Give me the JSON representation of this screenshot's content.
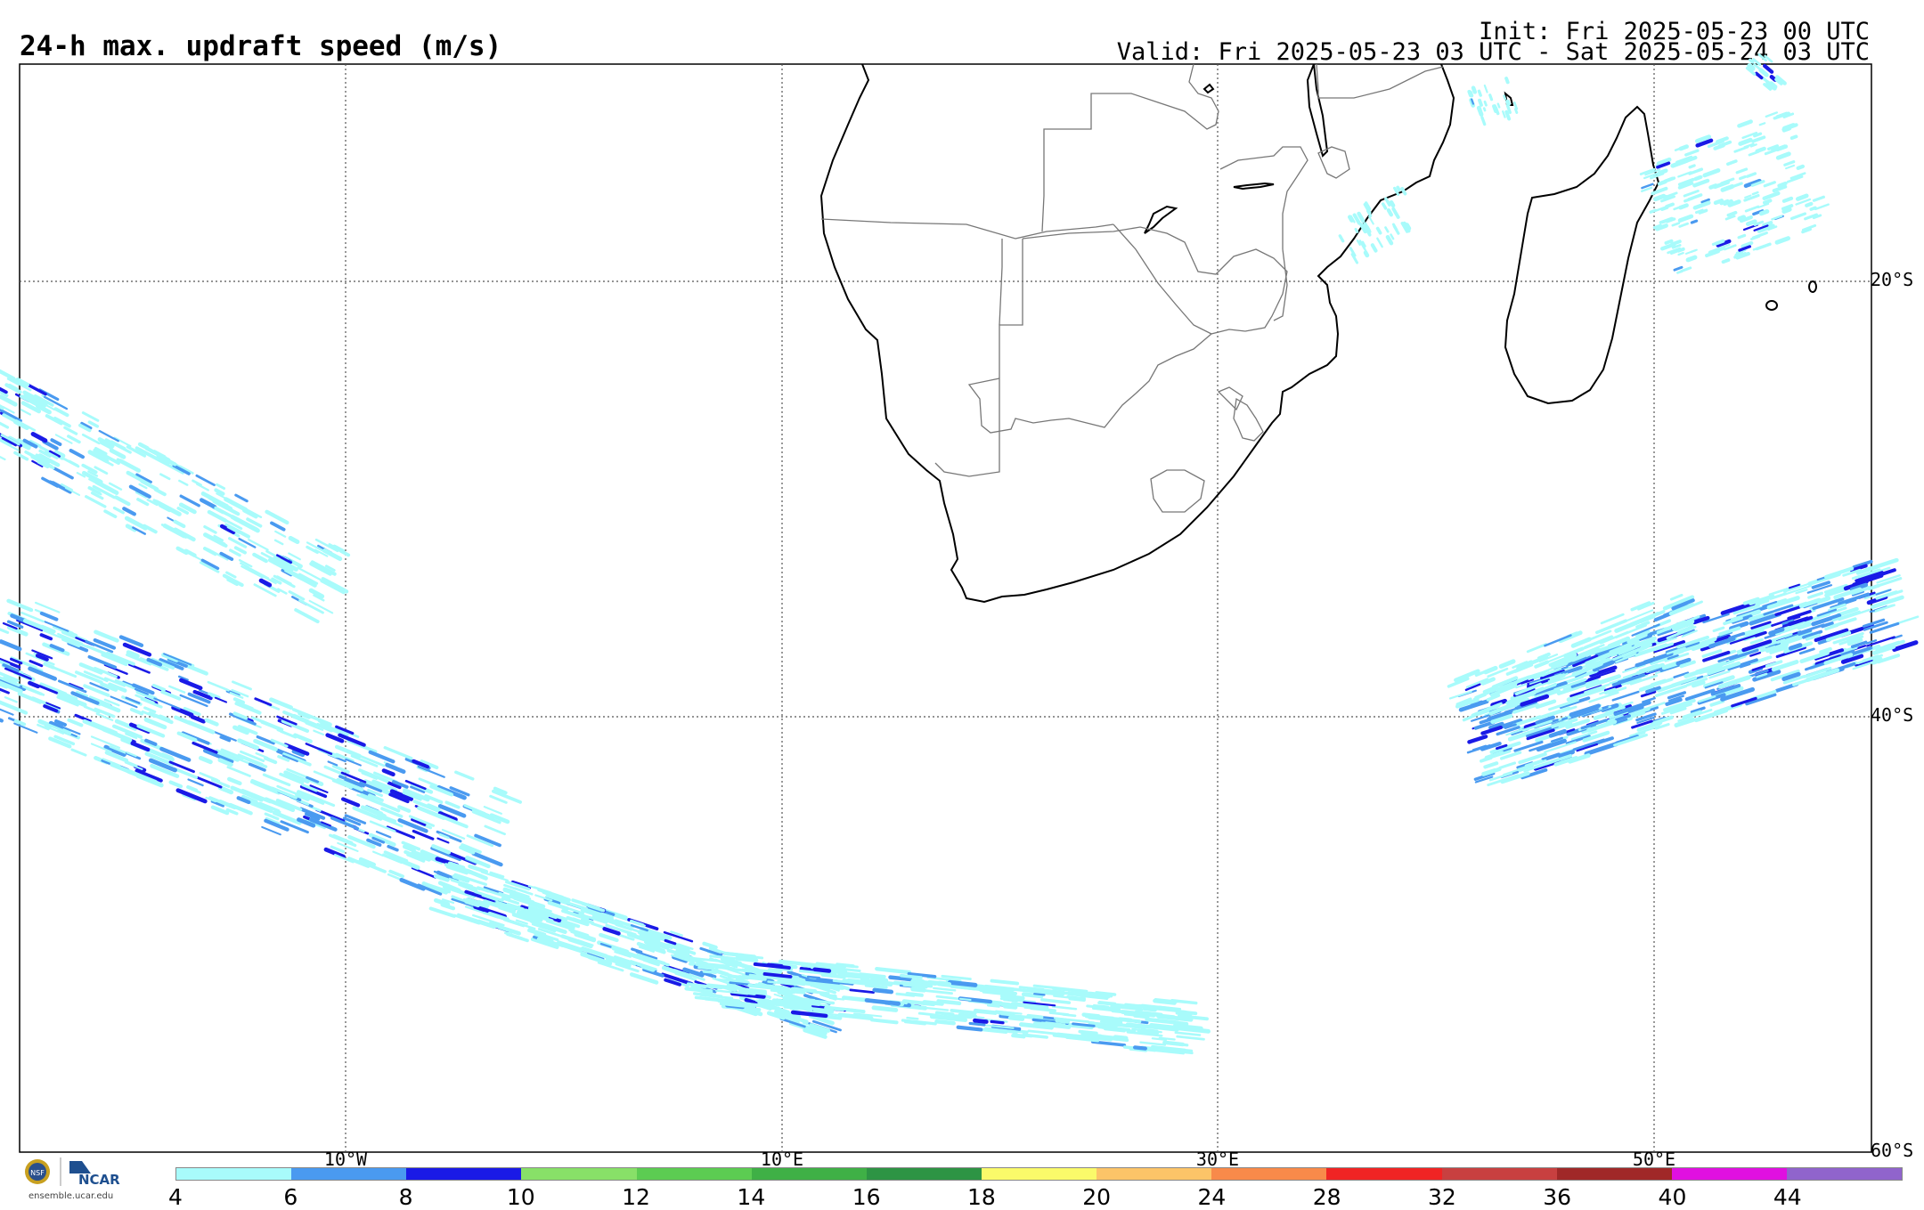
{
  "header": {
    "title": "24-h max. updraft speed (m/s)",
    "init": "Init: Fri 2025-05-23 00 UTC",
    "valid": "Valid: Fri 2025-05-23 03 UTC - Sat 2025-05-24 03 UTC"
  },
  "map": {
    "longitude_labels": [
      "10°W",
      "10°E",
      "30°E",
      "50°E"
    ],
    "latitude_labels": [
      "20°S",
      "40°S",
      "60°S"
    ]
  },
  "colorbar": {
    "labels": [
      "4",
      "6",
      "8",
      "10",
      "12",
      "14",
      "16",
      "18",
      "20",
      "24",
      "28",
      "32",
      "36",
      "40",
      "44"
    ],
    "colors": [
      "#a8fbfb",
      "#4a9af0",
      "#1a1ae6",
      "#88e068",
      "#5ccc52",
      "#3fb046",
      "#2d9444",
      "#fafa6a",
      "#fcc468",
      "#f88a4a",
      "#f02424",
      "#c84040",
      "#a02828",
      "#e010e0",
      "#9064cc"
    ]
  },
  "branding": {
    "nsf": "NSF",
    "ncar": "NCAR",
    "url": "ensemble.ucar.edu"
  }
}
